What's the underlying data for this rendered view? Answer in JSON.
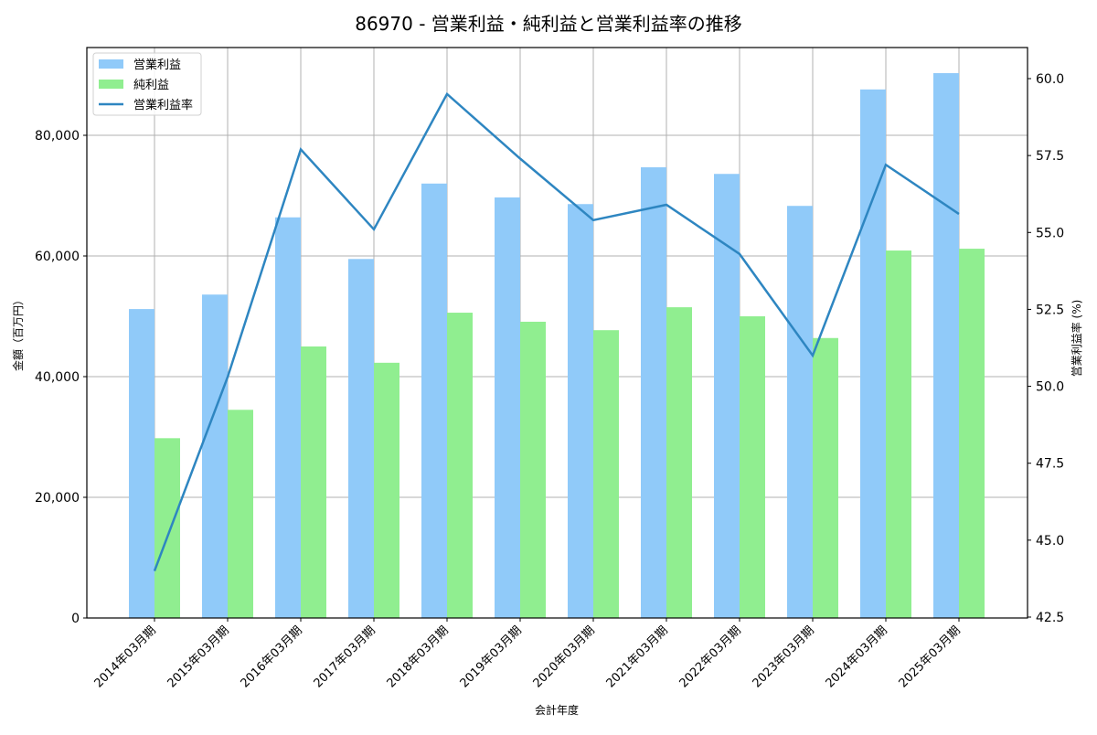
{
  "title": "86970 - 営業利益・純利益と営業利益率の推移",
  "colors": {
    "operating_profit": "#90CAF9",
    "net_profit": "#90EE90",
    "margin_line": "#2E86C1",
    "grid": "#b0b0b0",
    "axis": "#000000"
  },
  "legend": {
    "items": [
      {
        "label": "営業利益",
        "type": "bar",
        "color": "#90CAF9"
      },
      {
        "label": "純利益",
        "type": "bar",
        "color": "#90EE90"
      },
      {
        "label": "営業利益率",
        "type": "line",
        "color": "#2E86C1"
      }
    ]
  },
  "axes": {
    "xlabel": "会計年度",
    "ylabel_left": "金額（百万円）",
    "ylabel_right": "営業利益率 (%)",
    "left_ticks": [
      "0",
      "20,000",
      "40,000",
      "60,000",
      "80,000"
    ],
    "right_ticks": [
      "42.5",
      "45.0",
      "47.5",
      "50.0",
      "52.5",
      "55.0",
      "57.5",
      "60.0"
    ]
  },
  "chart_data": {
    "type": "bar",
    "title": "86970 - 営業利益・純利益と営業利益率の推移",
    "xlabel": "会計年度",
    "ylabel": "金額（百万円）",
    "ylabel_right": "営業利益率 (%)",
    "categories": [
      "2014年03月期",
      "2015年03月期",
      "2016年03月期",
      "2017年03月期",
      "2018年03月期",
      "2019年03月期",
      "2020年03月期",
      "2021年03月期",
      "2022年03月期",
      "2023年03月期",
      "2024年03月期",
      "2025年03月期"
    ],
    "series": [
      {
        "name": "営業利益",
        "type": "bar",
        "axis": "left",
        "values": [
          51200,
          53600,
          66400,
          59500,
          72000,
          69700,
          68600,
          74700,
          73600,
          68300,
          87600,
          90300
        ]
      },
      {
        "name": "純利益",
        "type": "bar",
        "axis": "left",
        "values": [
          29800,
          34500,
          45000,
          42300,
          50600,
          49100,
          47700,
          51500,
          50000,
          46400,
          60900,
          61200
        ]
      },
      {
        "name": "営業利益率",
        "type": "line",
        "axis": "right",
        "values": [
          44.0,
          50.3,
          57.7,
          55.1,
          59.5,
          57.4,
          55.4,
          55.9,
          54.3,
          51.0,
          57.2,
          55.6
        ]
      }
    ],
    "ylim": [
      0,
      94500
    ],
    "ylim_right": [
      42.4,
      60.9
    ],
    "grid": true,
    "legend_position": "upper left"
  }
}
